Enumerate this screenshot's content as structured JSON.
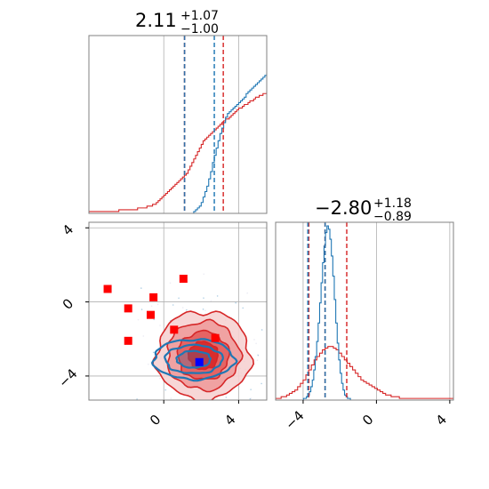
{
  "colors": {
    "posterior_a": "#1f77b4",
    "posterior_b": "#d62728",
    "marker_square": "#ff0000",
    "marker_truth": "#0000ff",
    "grid": "#b0b0b0",
    "frame": "#808080"
  },
  "chart_data": [
    {
      "type": "histogram",
      "panel": "top-left",
      "title": {
        "value": "2.11",
        "upper": "+1.07",
        "lower": "−1.00"
      },
      "xlim": [
        -4,
        5.5
      ],
      "grid": true,
      "quantile_lines": [
        {
          "series": "red",
          "x": [
            1.11,
            3.18
          ]
        },
        {
          "series": "blue",
          "x": [
            1.11,
            2.7
          ]
        }
      ],
      "series": [
        {
          "color": "blue",
          "bin_start": -4.0,
          "bin_width": 0.1,
          "counts": [
            0,
            0,
            0,
            0,
            0,
            0,
            0,
            0,
            0,
            0,
            0,
            0,
            0,
            0,
            0,
            0,
            0,
            0,
            0,
            0,
            0,
            0,
            0,
            0,
            0,
            0,
            0,
            0,
            0,
            0,
            0,
            0,
            0,
            0,
            0,
            0,
            0,
            0,
            0,
            0,
            0,
            0,
            0,
            0,
            0,
            0,
            0,
            0,
            0,
            0,
            0,
            0,
            0,
            0,
            0,
            0,
            1,
            2,
            3,
            4,
            6,
            9,
            12,
            15,
            19,
            23,
            28,
            32,
            36,
            40,
            44,
            47,
            50,
            53,
            55,
            56,
            57,
            58,
            59,
            60,
            61,
            62,
            63,
            64,
            66,
            67,
            68,
            69,
            70,
            71,
            72,
            73,
            74,
            75,
            76,
            77,
            78,
            79,
            80,
            81,
            82,
            83,
            84,
            86,
            88,
            90,
            92,
            95,
            96,
            90,
            83,
            75,
            65,
            55,
            45,
            35,
            26,
            19,
            13,
            8,
            5,
            3,
            2,
            1,
            1,
            0,
            0,
            0,
            0,
            0,
            0,
            0,
            0,
            0,
            0,
            0,
            0,
            0,
            0,
            0
          ]
        },
        {
          "color": "red",
          "bin_start": -4.0,
          "bin_width": 0.1,
          "counts": [
            1,
            1,
            1,
            1,
            1,
            1,
            1,
            1,
            1,
            1,
            1,
            1,
            1,
            1,
            1,
            1,
            2,
            2,
            2,
            2,
            2,
            2,
            2,
            2,
            2,
            2,
            3,
            3,
            3,
            3,
            3,
            4,
            4,
            4,
            5,
            5,
            6,
            7,
            8,
            9,
            10,
            11,
            12,
            13,
            14,
            15,
            16,
            17,
            18,
            19,
            20,
            21,
            22,
            24,
            26,
            28,
            30,
            32,
            34,
            36,
            38,
            40,
            41,
            42,
            43,
            44,
            45,
            46,
            47,
            48,
            49,
            50,
            51,
            52,
            52,
            53,
            54,
            55,
            56,
            57,
            58,
            58,
            59,
            60,
            60,
            61,
            62,
            62,
            63,
            64,
            64,
            65,
            65,
            66,
            66,
            67,
            67,
            68,
            68,
            69,
            69,
            70,
            70,
            69,
            68,
            67,
            66,
            64,
            62,
            60,
            58,
            55,
            52,
            49,
            46,
            43,
            40,
            36,
            32,
            28,
            24,
            20,
            17,
            14,
            11,
            9,
            7,
            5,
            4,
            3,
            3,
            2,
            2,
            1,
            1,
            1,
            1,
            1,
            1,
            1
          ]
        }
      ]
    },
    {
      "type": "histogram",
      "panel": "bottom-right",
      "title": {
        "value": "−2.80",
        "upper": "+1.18",
        "lower": "−0.89"
      },
      "xlim": [
        -5.5,
        4.2
      ],
      "xticks": [
        "−4",
        "0",
        "4"
      ],
      "grid": true,
      "quantile_lines": [
        {
          "series": "red",
          "x": [
            -3.69,
            -2.8,
            -1.62
          ]
        },
        {
          "series": "blue",
          "x": [
            -3.74,
            -2.8
          ]
        }
      ],
      "series": [
        {
          "color": "blue",
          "bin_start": -5.5,
          "bin_width": 0.08,
          "counts": [
            0,
            0,
            0,
            0,
            0,
            0,
            0,
            0,
            0,
            0,
            0,
            0,
            0,
            0,
            0,
            0,
            0,
            0,
            0,
            1,
            1,
            2,
            3,
            5,
            8,
            12,
            18,
            26,
            35,
            46,
            58,
            70,
            82,
            92,
            100,
            104,
            102,
            96,
            86,
            74,
            60,
            46,
            34,
            24,
            16,
            10,
            6,
            3,
            2,
            1,
            1,
            0,
            0,
            0,
            0,
            0,
            0,
            0,
            0,
            0,
            0,
            0,
            0,
            0,
            0,
            0,
            0,
            0,
            0,
            0,
            0,
            0,
            0,
            0,
            0,
            0,
            0,
            0,
            0,
            0,
            0,
            0,
            0,
            0,
            0,
            0,
            0,
            0,
            0,
            0,
            0,
            0,
            0,
            0,
            0,
            0,
            0,
            0,
            0,
            0,
            0,
            0,
            0,
            0,
            0,
            0,
            0,
            0,
            0,
            0,
            0,
            0,
            0,
            0,
            0,
            0,
            0,
            0,
            0,
            0
          ]
        },
        {
          "color": "red",
          "bin_start": -5.5,
          "bin_width": 0.15,
          "counts": [
            1,
            1,
            2,
            2,
            3,
            4,
            5,
            6,
            8,
            10,
            12,
            15,
            18,
            21,
            24,
            26,
            28,
            30,
            31,
            32,
            32,
            31,
            30,
            28,
            26,
            24,
            22,
            20,
            18,
            16,
            14,
            12,
            11,
            10,
            9,
            8,
            7,
            6,
            5,
            4,
            3,
            3,
            2,
            2,
            2,
            1,
            1,
            1,
            1,
            1,
            1,
            1,
            1,
            1,
            1,
            1,
            1,
            1,
            1,
            1,
            1,
            1,
            1,
            1,
            1
          ]
        }
      ]
    },
    {
      "type": "contour",
      "panel": "bottom-left",
      "xlim": [
        -4,
        5.5
      ],
      "ylim": [
        -5.3,
        4.3
      ],
      "xticks": [
        "0",
        "4"
      ],
      "yticks": [
        "4",
        "0",
        "−4"
      ],
      "grid": true,
      "series": [
        {
          "color": "red",
          "center": [
            2.11,
            -2.9
          ],
          "spread": [
            1.05,
            1.0
          ],
          "levels": 4
        },
        {
          "color": "blue",
          "center": [
            1.6,
            -3.1
          ],
          "spread": [
            0.9,
            0.45
          ],
          "levels": 3
        }
      ],
      "markers_square": [
        {
          "x": -3.0,
          "y": 0.7
        },
        {
          "x": -1.9,
          "y": -0.35
        },
        {
          "x": -0.55,
          "y": 0.25
        },
        {
          "x": 1.05,
          "y": 1.25
        },
        {
          "x": -0.7,
          "y": -0.7
        },
        {
          "x": 0.55,
          "y": -1.5
        },
        {
          "x": -1.9,
          "y": -2.1
        },
        {
          "x": 2.75,
          "y": -1.95
        }
      ],
      "marker_truth": {
        "x": 1.9,
        "y": -3.25
      }
    }
  ]
}
